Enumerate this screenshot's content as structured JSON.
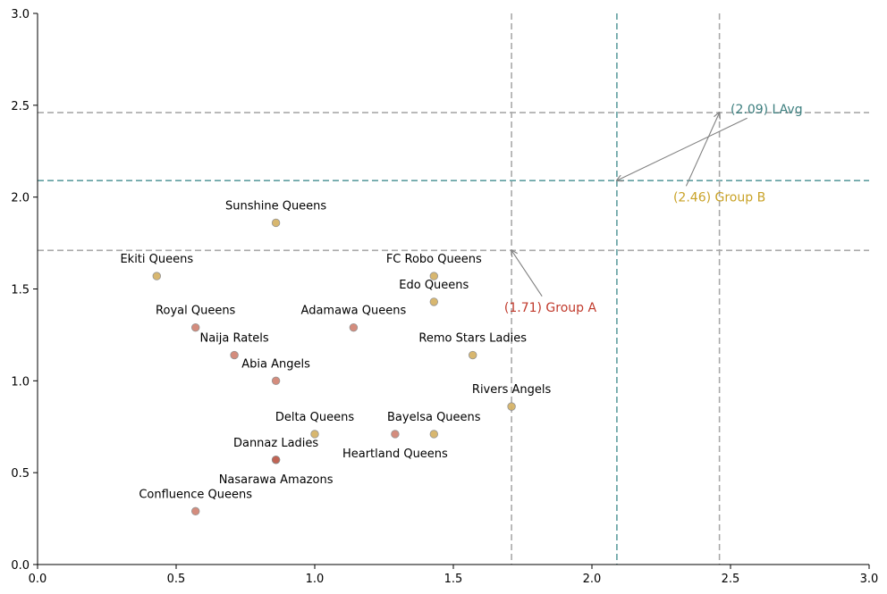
{
  "chart_data": {
    "type": "scatter",
    "title": "",
    "xlabel": "",
    "ylabel": "",
    "xlim": [
      0,
      3
    ],
    "ylim": [
      0,
      3
    ],
    "xticks": [
      "0.0",
      "0.5",
      "1.0",
      "1.5",
      "2.0",
      "2.5",
      "3.0"
    ],
    "yticks": [
      "0.0",
      "0.5",
      "1.0",
      "1.5",
      "2.0",
      "2.5",
      "3.0"
    ],
    "grid": false,
    "colors": {
      "group_a": "#d08070",
      "group_b": "#d4b060",
      "dark": "#c06050",
      "lavg_line": "#5f9ea0",
      "ref_line": "#a9a9a9",
      "group_a_text": "#c0392b",
      "group_b_text": "#c9a227",
      "lavg_text": "#3d7f7f"
    },
    "points": [
      {
        "name": "Sunshine Queens",
        "x": 0.86,
        "y": 1.86,
        "group": "B",
        "label_pos": "above"
      },
      {
        "name": "Ekiti Queens",
        "x": 0.43,
        "y": 1.57,
        "group": "B",
        "label_pos": "above"
      },
      {
        "name": "FC Robo Queens",
        "x": 1.43,
        "y": 1.57,
        "group": "B",
        "label_pos": "above"
      },
      {
        "name": "Edo Queens",
        "x": 1.43,
        "y": 1.43,
        "group": "B",
        "label_pos": "above"
      },
      {
        "name": "Royal Queens",
        "x": 0.57,
        "y": 1.29,
        "group": "A",
        "label_pos": "above"
      },
      {
        "name": "Adamawa Queens",
        "x": 1.14,
        "y": 1.29,
        "group": "A",
        "label_pos": "above"
      },
      {
        "name": "Naija Ratels",
        "x": 0.71,
        "y": 1.14,
        "group": "A",
        "label_pos": "above"
      },
      {
        "name": "Remo Stars Ladies",
        "x": 1.57,
        "y": 1.14,
        "group": "B",
        "label_pos": "above"
      },
      {
        "name": "Abia Angels",
        "x": 0.86,
        "y": 1.0,
        "group": "A",
        "label_pos": "above"
      },
      {
        "name": "Rivers Angels",
        "x": 1.71,
        "y": 0.86,
        "group": "B",
        "label_pos": "above"
      },
      {
        "name": "Delta Queens",
        "x": 1.0,
        "y": 0.71,
        "group": "B",
        "label_pos": "above"
      },
      {
        "name": "Bayelsa Queens",
        "x": 1.43,
        "y": 0.71,
        "group": "B",
        "label_pos": "above"
      },
      {
        "name": "Heartland Queens",
        "x": 1.29,
        "y": 0.71,
        "group": "A",
        "label_pos": "below"
      },
      {
        "name": "Dannaz Ladies",
        "x": 0.86,
        "y": 0.57,
        "group": "A",
        "label_pos": "above"
      },
      {
        "name": "Nasarawa Amazons",
        "x": 0.86,
        "y": 0.57,
        "group": "A",
        "label_pos": "below"
      },
      {
        "name": "Confluence Queens",
        "x": 0.57,
        "y": 0.29,
        "group": "A",
        "label_pos": "above"
      }
    ],
    "reference_lines": [
      {
        "value": 1.71,
        "label": "(1.71) Group A",
        "style": "ref"
      },
      {
        "value": 2.09,
        "label": "(2.09) LAvg",
        "style": "lavg"
      },
      {
        "value": 2.46,
        "label": "(2.46) Group B",
        "style": "ref"
      }
    ]
  }
}
